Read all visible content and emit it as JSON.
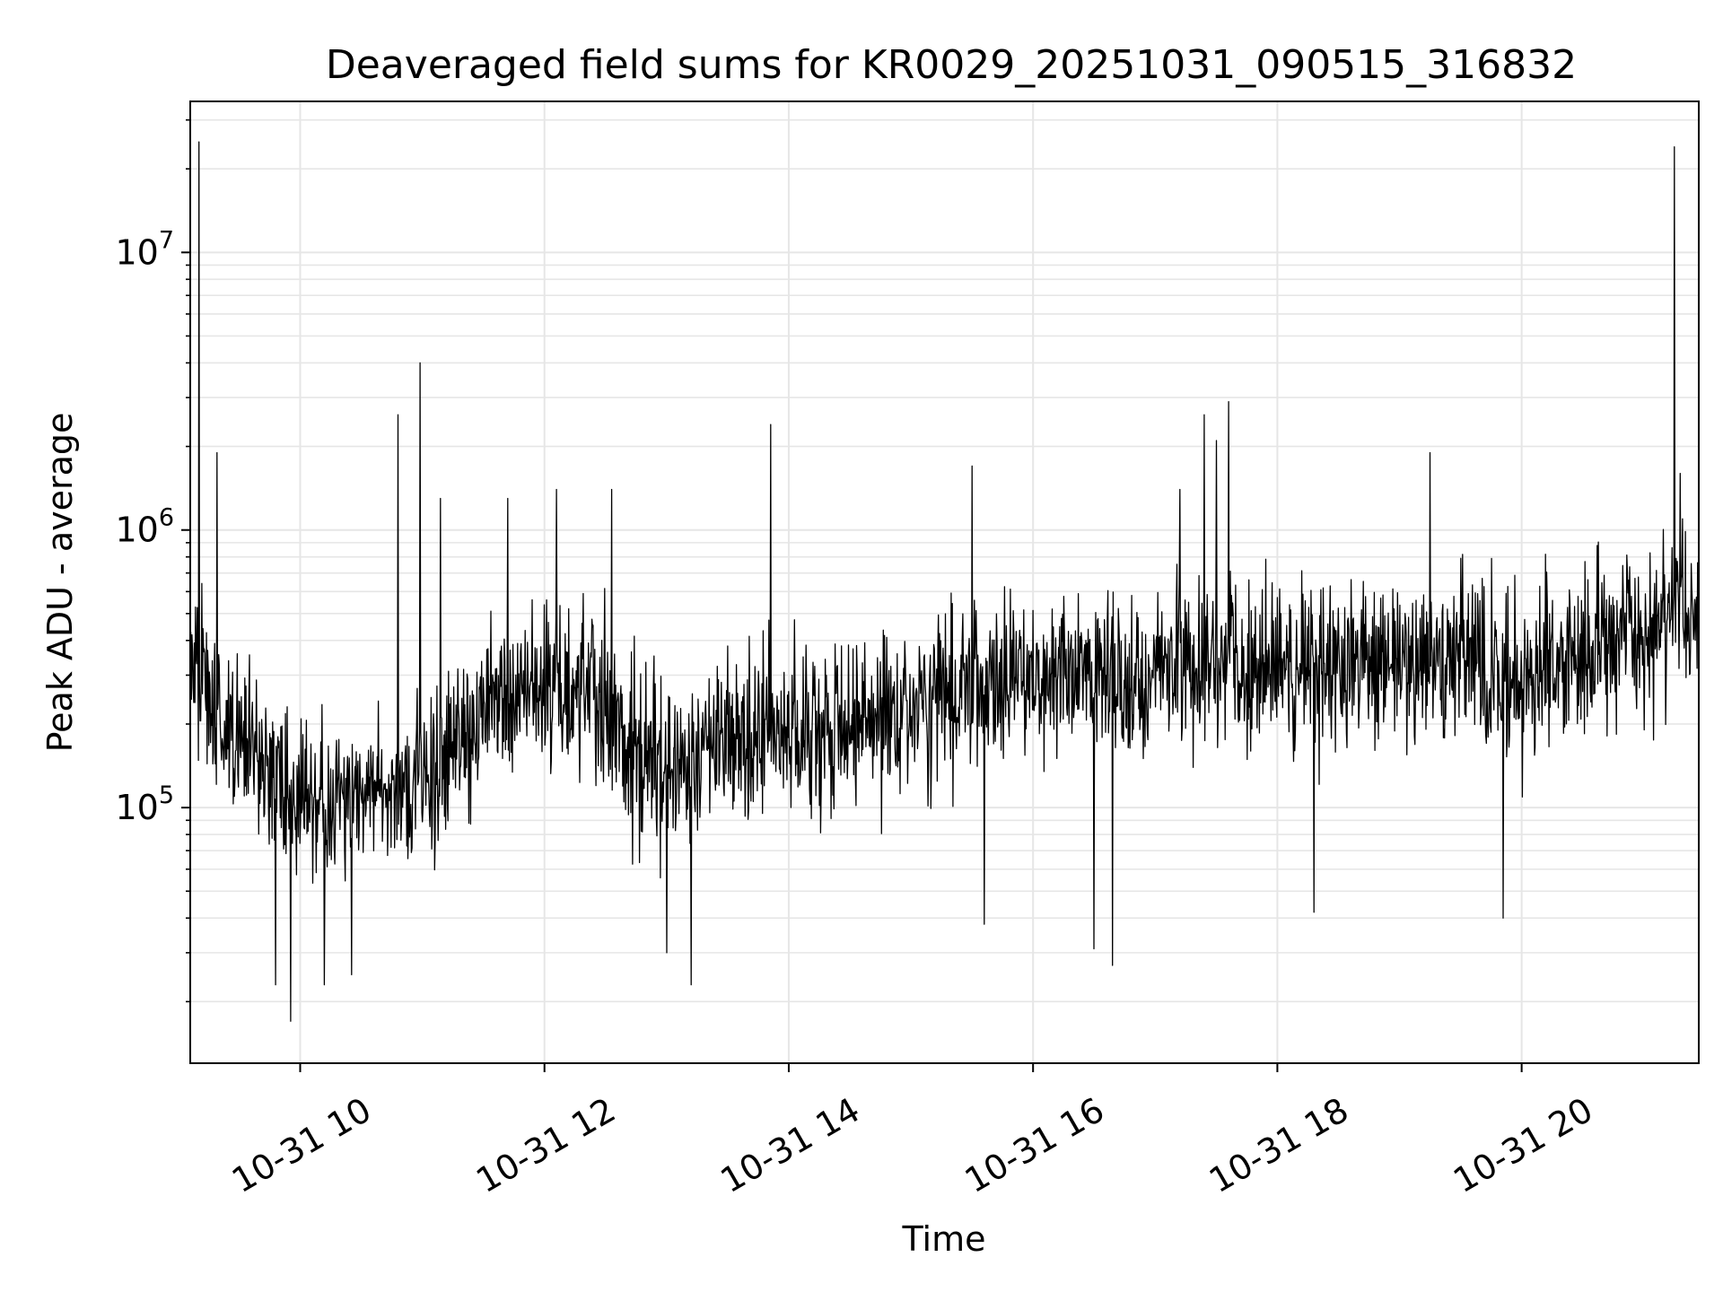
{
  "chart_data": {
    "type": "line",
    "title": "Deaveraged field sums for KR0029_20251031_090515_316832",
    "xlabel": "Time",
    "ylabel": "Peak ADU - average",
    "yscale": "log",
    "xlim_hours": [
      9.1,
      21.45
    ],
    "ylim": [
      12000,
      35000000
    ],
    "grid": true,
    "grid_minor": true,
    "line_color": "#000000",
    "grid_color": "#e6e6e6",
    "x_ticks": [
      {
        "hour": 10,
        "label": "10-31 10"
      },
      {
        "hour": 12,
        "label": "10-31 12"
      },
      {
        "hour": 14,
        "label": "10-31 14"
      },
      {
        "hour": 16,
        "label": "10-31 16"
      },
      {
        "hour": 18,
        "label": "10-31 18"
      },
      {
        "hour": 20,
        "label": "10-31 20"
      }
    ],
    "y_ticks": [
      {
        "value": 100000,
        "base": "10",
        "exp": "5"
      },
      {
        "value": 1000000,
        "base": "10",
        "exp": "6"
      },
      {
        "value": 10000000,
        "base": "10",
        "exp": "7"
      }
    ],
    "series": [
      {
        "name": "deaveraged field sums",
        "baseline_hours": [
          9.1,
          9.5,
          10.0,
          10.8,
          11.0,
          11.7,
          12.5,
          12.7,
          13.5,
          14.5,
          15.5,
          16.0,
          16.5,
          17.5,
          18.5,
          19.5,
          19.9,
          20.5,
          21.0,
          21.45
        ],
        "baseline_values": [
          300000,
          180000,
          100000,
          110000,
          130000,
          250000,
          250000,
          140000,
          180000,
          200000,
          280000,
          300000,
          280000,
          330000,
          330000,
          350000,
          300000,
          350000,
          450000,
          550000
        ],
        "spikes": [
          {
            "hour": 9.17,
            "value": 25000000
          },
          {
            "hour": 9.32,
            "value": 1900000
          },
          {
            "hour": 10.8,
            "value": 2600000
          },
          {
            "hour": 10.98,
            "value": 4000000
          },
          {
            "hour": 11.15,
            "value": 1300000
          },
          {
            "hour": 11.7,
            "value": 1300000
          },
          {
            "hour": 12.1,
            "value": 1400000
          },
          {
            "hour": 12.55,
            "value": 1400000
          },
          {
            "hour": 13.85,
            "value": 2400000
          },
          {
            "hour": 15.5,
            "value": 1700000
          },
          {
            "hour": 17.2,
            "value": 1400000
          },
          {
            "hour": 17.4,
            "value": 2600000
          },
          {
            "hour": 17.5,
            "value": 2100000
          },
          {
            "hour": 17.6,
            "value": 2900000
          },
          {
            "hour": 19.25,
            "value": 1900000
          },
          {
            "hour": 21.25,
            "value": 24000000
          },
          {
            "hour": 21.3,
            "value": 1600000
          }
        ],
        "dips": [
          {
            "hour": 9.8,
            "value": 23000
          },
          {
            "hour": 9.92,
            "value": 17000
          },
          {
            "hour": 10.2,
            "value": 23000
          },
          {
            "hour": 10.42,
            "value": 25000
          },
          {
            "hour": 13.2,
            "value": 23000
          },
          {
            "hour": 13.0,
            "value": 30000
          },
          {
            "hour": 15.6,
            "value": 38000
          },
          {
            "hour": 16.5,
            "value": 31000
          },
          {
            "hour": 16.65,
            "value": 27000
          },
          {
            "hour": 18.3,
            "value": 42000
          },
          {
            "hour": 19.85,
            "value": 40000
          }
        ],
        "samples": 2600
      }
    ]
  }
}
